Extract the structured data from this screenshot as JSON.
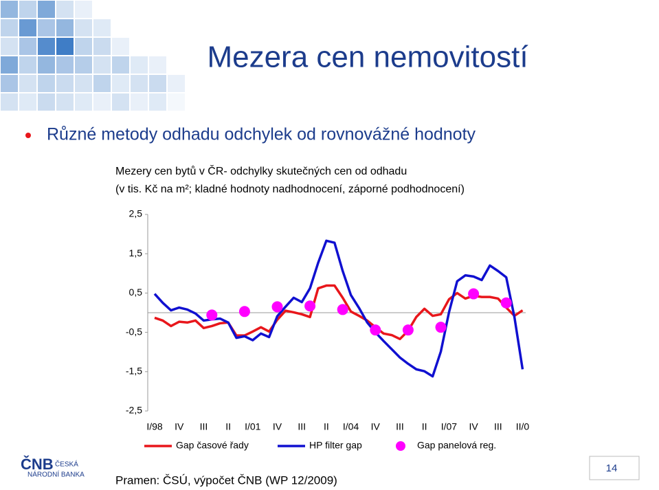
{
  "slide": {
    "title": "Mezera cen nemovitostí",
    "bullet": "Různé metody odhadu odchylek od rovnovážné hodnoty",
    "source": "Pramen: ČSÚ, výpočet ČNB (WP 12/2009)",
    "page_number": "14",
    "logo": {
      "mark": "ČNB",
      "line1": "ČESKÁ",
      "line2": "NÁRODNÍ BANKA"
    }
  },
  "chart_data": {
    "type": "line",
    "title": "Mezery cen bytů v ČR- odchylky skutečných cen od odhadu",
    "subtitle": "(v tis. Kč na m²; kladné hodnoty nadhodnocení, záporné podhodnocení)",
    "categories": [
      "I/98",
      null,
      null,
      "IV",
      null,
      null,
      "III",
      null,
      null,
      "II",
      null,
      null,
      "I/01",
      null,
      null,
      "IV",
      null,
      null,
      "III",
      null,
      null,
      "II",
      null,
      null,
      "I/04",
      null,
      null,
      "IV",
      null,
      null,
      "III",
      null,
      null,
      "II",
      null,
      null,
      "I/07",
      null,
      null,
      "IV",
      null,
      null,
      "III",
      null,
      null,
      "II/0"
    ],
    "ylim": [
      -2.5,
      2.5
    ],
    "yticks": [
      {
        "value": 2.5,
        "label": "2,5"
      },
      {
        "value": 1.5,
        "label": "1,5"
      },
      {
        "value": 0.5,
        "label": "0,5"
      },
      {
        "value": -0.5,
        "label": "-0,5"
      },
      {
        "value": -1.5,
        "label": "-1,5"
      },
      {
        "value": -2.5,
        "label": "-2,5"
      }
    ],
    "zero_line": true,
    "series": [
      {
        "name": "Gap časové řady",
        "color": "#e8161b",
        "style": "line",
        "values": [
          -0.13,
          -0.2,
          -0.34,
          -0.23,
          -0.25,
          -0.2,
          -0.39,
          -0.34,
          -0.27,
          -0.25,
          -0.58,
          -0.58,
          -0.48,
          -0.37,
          -0.48,
          -0.18,
          0.05,
          0.01,
          -0.04,
          -0.11,
          0.62,
          0.69,
          0.69,
          0.38,
          0.03,
          -0.08,
          -0.2,
          -0.37,
          -0.53,
          -0.57,
          -0.67,
          -0.46,
          -0.11,
          0.1,
          -0.08,
          -0.04,
          0.34,
          0.5,
          0.36,
          0.43,
          0.4,
          0.4,
          0.36,
          0.13,
          -0.08,
          0.06
        ]
      },
      {
        "name": "HP filter gap",
        "color": "#1010d0",
        "style": "line",
        "values": [
          0.48,
          0.25,
          0.06,
          0.13,
          0.08,
          -0.02,
          -0.2,
          -0.17,
          -0.15,
          -0.25,
          -0.64,
          -0.6,
          -0.7,
          -0.53,
          -0.62,
          -0.09,
          0.15,
          0.38,
          0.27,
          0.62,
          1.27,
          1.83,
          1.78,
          1.06,
          0.45,
          0.12,
          -0.25,
          -0.5,
          -0.72,
          -0.93,
          -1.14,
          -1.3,
          -1.44,
          -1.49,
          -1.62,
          -0.99,
          0.01,
          0.8,
          0.95,
          0.92,
          0.83,
          1.2,
          1.06,
          0.9,
          -0.11,
          -1.44
        ]
      },
      {
        "name": "Gap panelová reg.",
        "color": "#ff00ff",
        "style": "marker",
        "values": [
          null,
          null,
          null,
          null,
          null,
          null,
          null,
          -0.06,
          null,
          null,
          null,
          0.03,
          null,
          null,
          null,
          0.15,
          null,
          null,
          null,
          0.17,
          null,
          null,
          null,
          0.08,
          null,
          null,
          null,
          -0.44,
          null,
          null,
          null,
          -0.44,
          null,
          null,
          null,
          -0.37,
          null,
          null,
          null,
          0.48,
          null,
          null,
          null,
          0.25,
          null,
          null
        ]
      }
    ]
  }
}
